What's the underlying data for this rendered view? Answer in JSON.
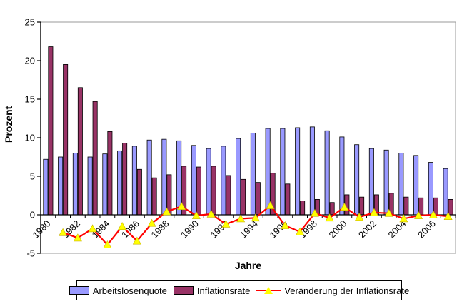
{
  "axes": {
    "y_label": "Prozent",
    "x_label": "Jahre",
    "y_ticks": [
      25,
      20,
      15,
      10,
      5,
      0,
      -5
    ],
    "y_min": -5,
    "y_max": 25,
    "x_tick_years": [
      "1980",
      "1982",
      "1984",
      "1986",
      "1988",
      "1990",
      "1992",
      "1994",
      "1996",
      "1998",
      "2000",
      "2002",
      "2004",
      "2006"
    ]
  },
  "legend": {
    "items": [
      {
        "label": "Arbeitslosenquote",
        "type": "box",
        "color": "#9999FF"
      },
      {
        "label": "Inflationsrate",
        "type": "box",
        "color": "#993366"
      },
      {
        "label": "Veränderung der Inflationsrate",
        "type": "line",
        "color": "#FF0000",
        "marker_color": "#FFFF00"
      }
    ]
  },
  "chart_data": {
    "type": "bar",
    "title": "",
    "xlabel": "Jahre",
    "ylabel": "Prozent",
    "ylim": [
      -5,
      25
    ],
    "grid": false,
    "legend_position": "bottom",
    "categories": [
      1980,
      1981,
      1982,
      1983,
      1984,
      1985,
      1986,
      1987,
      1988,
      1989,
      1990,
      1991,
      1992,
      1993,
      1994,
      1995,
      1996,
      1997,
      1998,
      1999,
      2000,
      2001,
      2002,
      2003,
      2004,
      2005,
      2006,
      2007
    ],
    "series": [
      {
        "name": "Arbeitslosenquote",
        "type": "bar",
        "color": "#9999FF",
        "values": [
          7.2,
          7.5,
          8.0,
          7.5,
          7.9,
          8.3,
          8.9,
          9.7,
          9.8,
          9.6,
          9.0,
          8.6,
          8.9,
          9.9,
          10.6,
          11.2,
          11.2,
          11.3,
          11.4,
          10.9,
          10.1,
          9.1,
          8.6,
          8.4,
          8.0,
          7.7,
          6.8,
          6.0
        ]
      },
      {
        "name": "Inflationsrate",
        "type": "bar",
        "color": "#993366",
        "values": [
          21.8,
          19.5,
          16.5,
          14.7,
          10.8,
          9.3,
          5.9,
          4.8,
          5.2,
          6.3,
          6.2,
          6.3,
          5.1,
          4.6,
          4.2,
          5.4,
          4.0,
          1.8,
          2.0,
          1.6,
          2.6,
          2.3,
          2.6,
          2.8,
          2.3,
          2.2,
          2.2,
          2.0
        ]
      },
      {
        "name": "Veränderung der Inflationsrate",
        "type": "line",
        "color": "#FF0000",
        "marker": "triangle",
        "marker_color": "#FFFF00",
        "values": [
          null,
          -2.3,
          -3.0,
          -1.8,
          -3.9,
          -1.5,
          -3.4,
          -1.1,
          0.4,
          1.1,
          -0.1,
          0.1,
          -1.2,
          -0.5,
          -0.4,
          1.2,
          -1.4,
          -2.2,
          0.2,
          -0.4,
          1.0,
          -0.3,
          0.3,
          0.2,
          -0.5,
          -0.1,
          0.0,
          -0.2
        ]
      }
    ]
  }
}
